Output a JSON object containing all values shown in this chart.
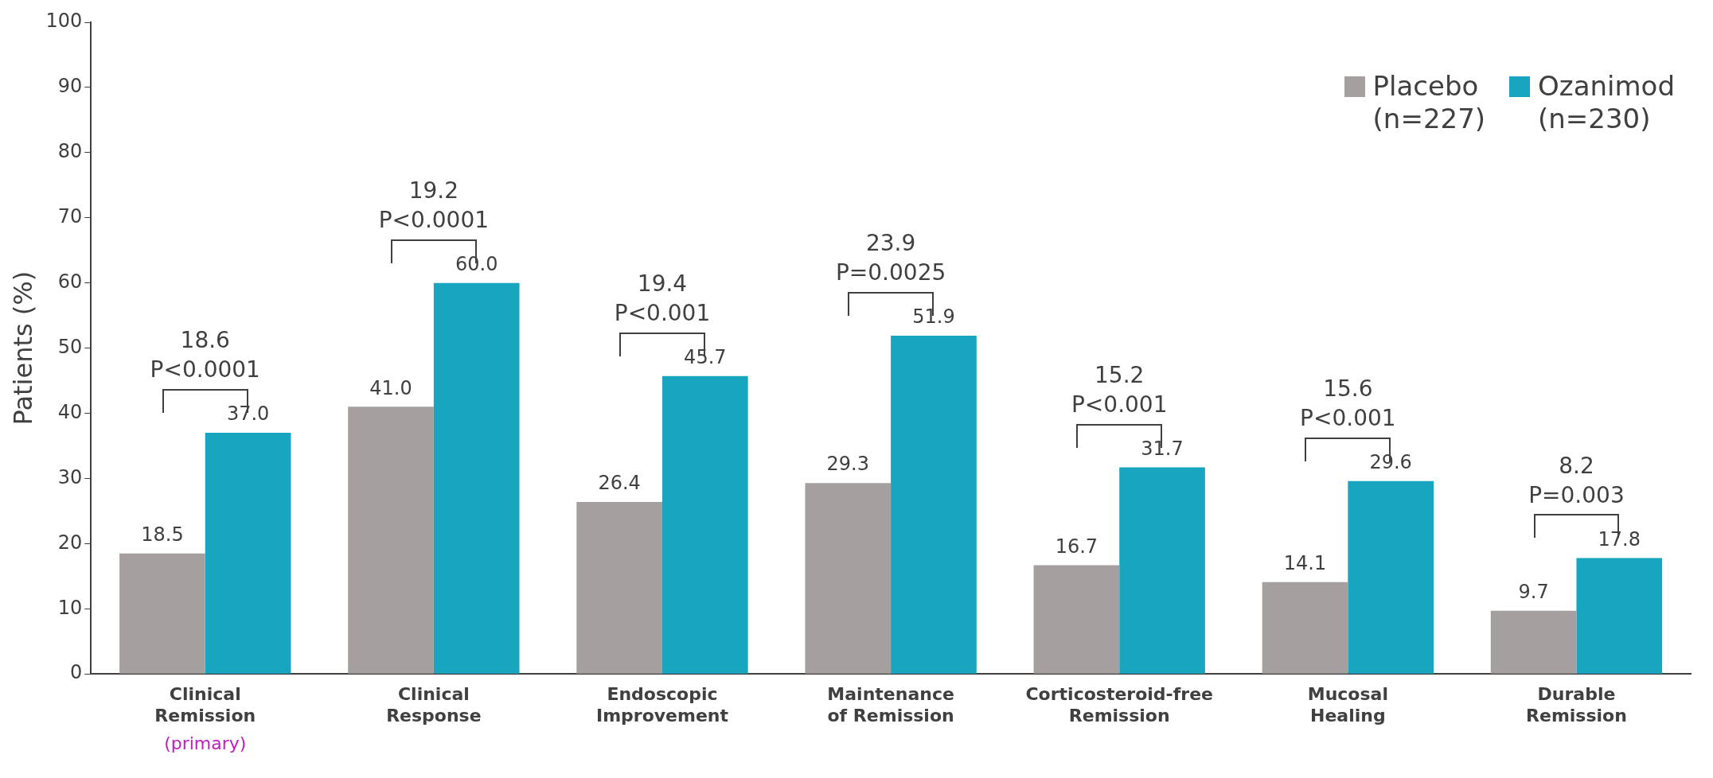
{
  "chart_data": {
    "type": "bar",
    "ylabel": "Patients (%)",
    "categories": [
      "Clinical\nRemission",
      "Clinical\nResponse",
      "Endoscopic\nImprovement",
      "Maintenance\nof Remission",
      "Corticosteroid-free\nRemission",
      "Mucosal\nHealing",
      "Durable\nRemission"
    ],
    "series": [
      {
        "name": "Placebo\n(n=227)",
        "color": "#a59f9f",
        "values": [
          18.5,
          41.0,
          26.4,
          29.3,
          16.7,
          14.1,
          9.7
        ],
        "value_labels": [
          "18.5",
          "41.0",
          "26.4",
          "29.3",
          "16.7",
          "14.1",
          "9.7"
        ]
      },
      {
        "name": "Ozanimod\n(n=230)",
        "color": "#17a5bf",
        "values": [
          37.0,
          60.0,
          45.7,
          51.9,
          31.7,
          29.6,
          17.8
        ],
        "value_labels": [
          "37.0",
          "60.0",
          "45.7",
          "51.9",
          "31.7",
          "29.6",
          "17.8"
        ]
      }
    ],
    "ylim": [
      0,
      100
    ],
    "yticks": [
      0,
      10,
      20,
      30,
      40,
      50,
      60,
      70,
      80,
      90,
      100
    ],
    "legend": "top right",
    "annotations": [
      "(primary)",
      "18.6",
      "P<0.0001",
      "19.2",
      "P<0.0001",
      "19.4",
      "P<0.001",
      "23.9",
      "P=0.0025",
      "15.2",
      "P<0.001",
      "15.6",
      "P<0.001",
      "8.2",
      "P=0.003"
    ]
  }
}
